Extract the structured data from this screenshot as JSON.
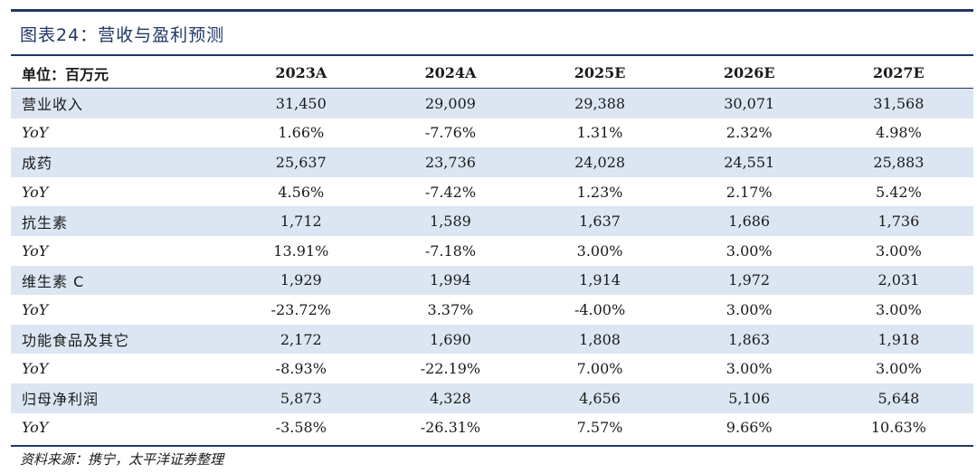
{
  "title": "图表24：营收与盈利预测",
  "table": {
    "header": [
      "单位：百万元",
      "2023A",
      "2024A",
      "2025E",
      "2026E",
      "2027E"
    ],
    "rows": [
      {
        "label": "营业收入",
        "values": [
          "31,450",
          "29,009",
          "29,388",
          "30,071",
          "31,568"
        ]
      },
      {
        "label": "YoY",
        "values": [
          "1.66%",
          "-7.76%",
          "1.31%",
          "2.32%",
          "4.98%"
        ]
      },
      {
        "label": "成药",
        "values": [
          "25,637",
          "23,736",
          "24,028",
          "24,551",
          "25,883"
        ]
      },
      {
        "label": "YoY",
        "values": [
          "4.56%",
          "-7.42%",
          "1.23%",
          "2.17%",
          "5.42%"
        ]
      },
      {
        "label": "抗生素",
        "values": [
          "1,712",
          "1,589",
          "1,637",
          "1,686",
          "1,736"
        ]
      },
      {
        "label": "YoY",
        "values": [
          "13.91%",
          "-7.18%",
          "3.00%",
          "3.00%",
          "3.00%"
        ]
      },
      {
        "label": "维生素 C",
        "values": [
          "1,929",
          "1,994",
          "1,914",
          "1,972",
          "2,031"
        ]
      },
      {
        "label": "YoY",
        "values": [
          "-23.72%",
          "3.37%",
          "-4.00%",
          "3.00%",
          "3.00%"
        ]
      },
      {
        "label": "功能食品及其它",
        "values": [
          "2,172",
          "1,690",
          "1,808",
          "1,863",
          "1,918"
        ]
      },
      {
        "label": "YoY",
        "values": [
          "-8.93%",
          "-22.19%",
          "7.00%",
          "3.00%",
          "3.00%"
        ]
      },
      {
        "label": "归母净利润",
        "values": [
          "5,873",
          "4,328",
          "4,656",
          "5,106",
          "5,648"
        ]
      },
      {
        "label": "YoY",
        "values": [
          "-3.58%",
          "-26.31%",
          "7.57%",
          "9.66%",
          "10.63%"
        ]
      }
    ]
  },
  "source": "资料来源：携宁，太平洋证券整理",
  "colors": {
    "accent": "#1f3864",
    "row_shade": "#dce6f2"
  }
}
